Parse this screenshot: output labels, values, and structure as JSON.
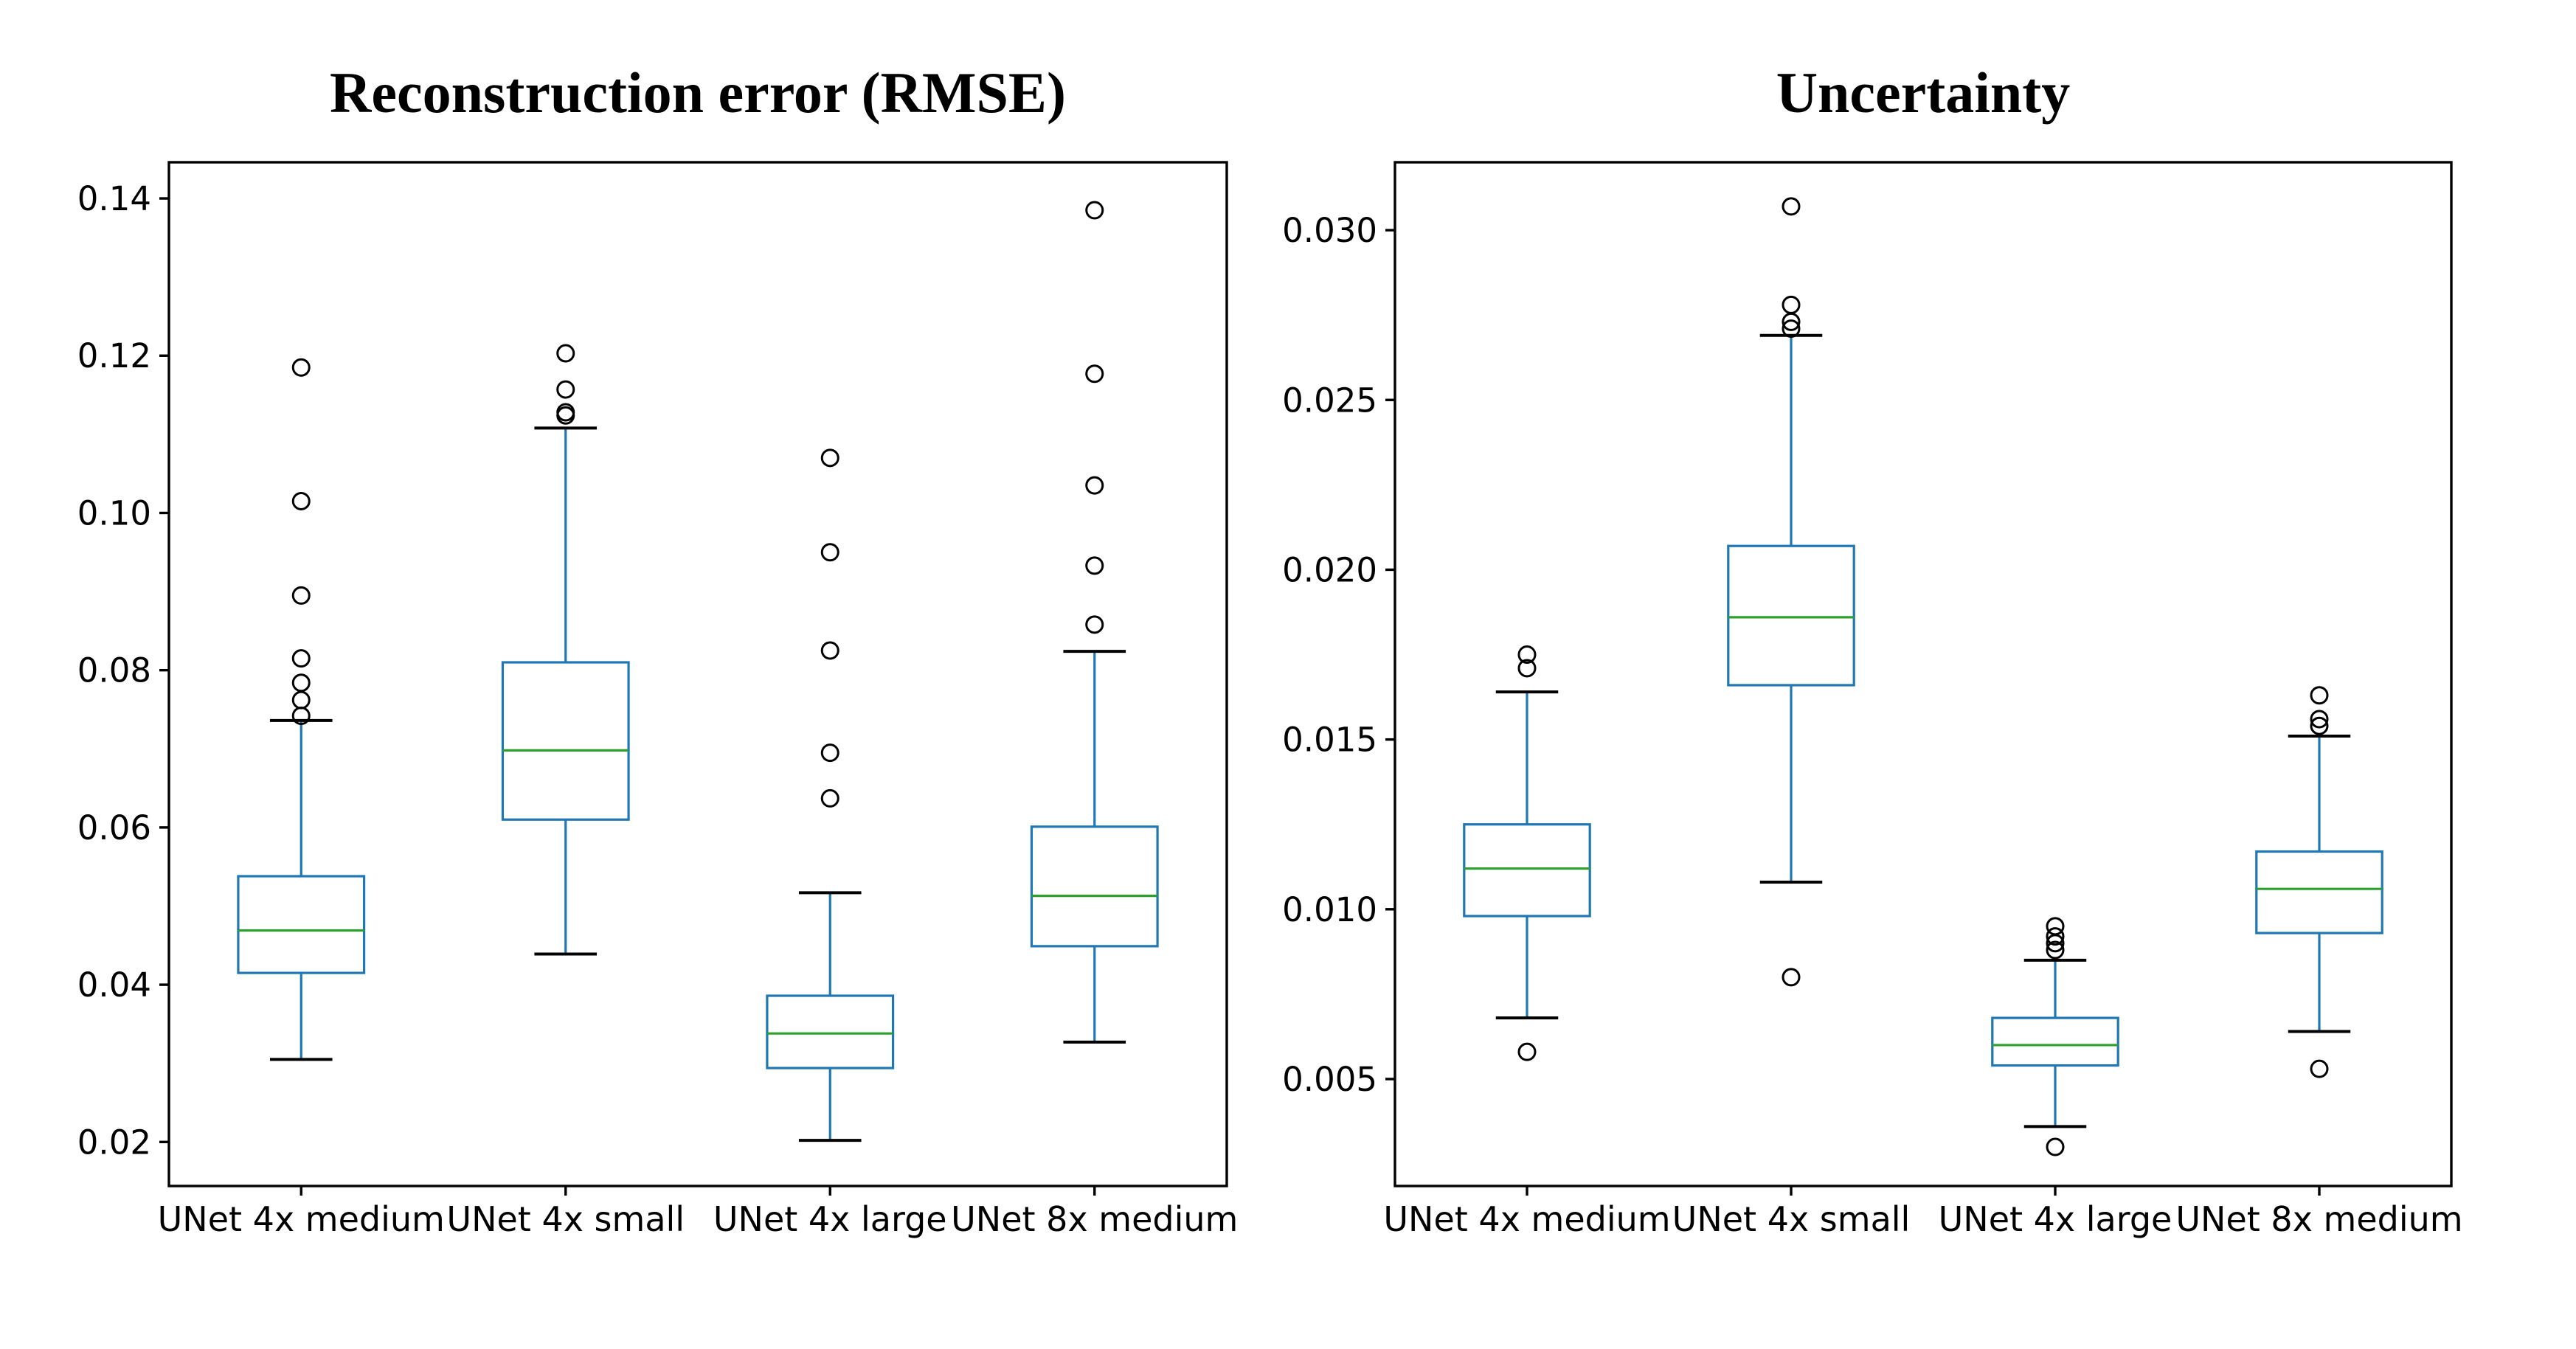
{
  "figure": {
    "background": "#ffffff",
    "box_color": "#1f77b4",
    "median_color": "#2ca02c",
    "whisker_cap_color": "#000000",
    "outlier_color": "#000000",
    "text_color": "#000000"
  },
  "chart_data": [
    {
      "type": "boxplot",
      "title": "Reconstruction error (RMSE)",
      "categories": [
        "UNet 4x medium",
        "UNet 4x small",
        "UNet 4x large",
        "UNet 8x medium"
      ],
      "ylim": [
        0.0144,
        0.1446
      ],
      "yticks": [
        0.02,
        0.04,
        0.06,
        0.08,
        0.1,
        0.12,
        0.14
      ],
      "ytick_labels": [
        "0.02",
        "0.04",
        "0.06",
        "0.08",
        "0.10",
        "0.12",
        "0.14"
      ],
      "xlabel": "",
      "ylabel": "",
      "grid": false,
      "legend": null,
      "boxes": [
        {
          "label": "UNet 4x medium",
          "whislo": 0.0305,
          "q1": 0.0415,
          "med": 0.0469,
          "q3": 0.0538,
          "whishi": 0.0736,
          "fliers": [
            0.0742,
            0.0762,
            0.0784,
            0.0815,
            0.0895,
            0.1015,
            0.1185
          ]
        },
        {
          "label": "UNet 4x small",
          "whislo": 0.0439,
          "q1": 0.061,
          "med": 0.0698,
          "q3": 0.081,
          "whishi": 0.1108,
          "fliers": [
            0.1124,
            0.1128,
            0.1157,
            0.1203
          ]
        },
        {
          "label": "UNet 4x large",
          "whislo": 0.0202,
          "q1": 0.0294,
          "med": 0.0338,
          "q3": 0.0386,
          "whishi": 0.0517,
          "fliers": [
            0.0637,
            0.0695,
            0.0825,
            0.095,
            0.107
          ]
        },
        {
          "label": "UNet 8x medium",
          "whislo": 0.0327,
          "q1": 0.0449,
          "med": 0.0513,
          "q3": 0.0601,
          "whishi": 0.0824,
          "fliers": [
            0.0858,
            0.0933,
            0.1035,
            0.1177,
            0.1385
          ]
        }
      ]
    },
    {
      "type": "boxplot",
      "title": "Uncertainty",
      "categories": [
        "UNet 4x medium",
        "UNet 4x small",
        "UNet 4x large",
        "UNet 8x medium"
      ],
      "ylim": [
        0.00185,
        0.032
      ],
      "yticks": [
        0.005,
        0.01,
        0.015,
        0.02,
        0.025,
        0.03
      ],
      "ytick_labels": [
        "0.005",
        "0.010",
        "0.015",
        "0.020",
        "0.025",
        "0.030"
      ],
      "xlabel": "",
      "ylabel": "",
      "grid": false,
      "legend": null,
      "boxes": [
        {
          "label": "UNet 4x medium",
          "whislo": 0.0068,
          "q1": 0.0098,
          "med": 0.0112,
          "q3": 0.0125,
          "whishi": 0.0164,
          "fliers": [
            0.0058,
            0.0171,
            0.0175
          ]
        },
        {
          "label": "UNet 4x small",
          "whislo": 0.0108,
          "q1": 0.0166,
          "med": 0.0186,
          "q3": 0.0207,
          "whishi": 0.0269,
          "fliers": [
            0.008,
            0.0271,
            0.0273,
            0.0278,
            0.0307
          ]
        },
        {
          "label": "UNet 4x large",
          "whislo": 0.0036,
          "q1": 0.0054,
          "med": 0.006,
          "q3": 0.0068,
          "whishi": 0.0085,
          "fliers": [
            0.003,
            0.0088,
            0.009,
            0.0092,
            0.0095
          ]
        },
        {
          "label": "UNet 8x medium",
          "whislo": 0.0064,
          "q1": 0.0093,
          "med": 0.0106,
          "q3": 0.0117,
          "whishi": 0.0151,
          "fliers": [
            0.0053,
            0.0154,
            0.0156,
            0.0163
          ]
        }
      ]
    }
  ]
}
